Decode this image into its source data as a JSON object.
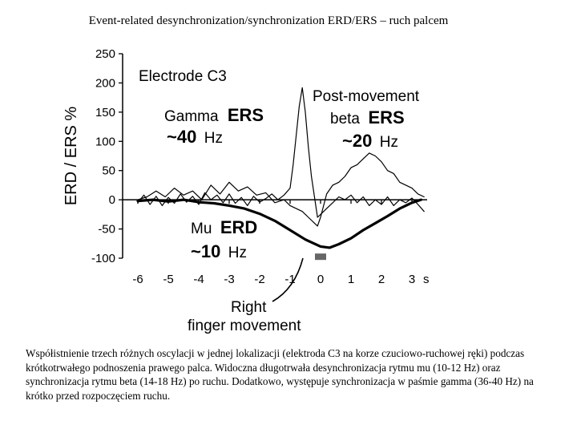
{
  "slide": {
    "title": "Event-related desynchronization/synchronization ERD/ERS – ruch palcem",
    "caption": "Współistnienie trzech różnych oscylacji w jednej lokalizacji (elektroda C3 na korze czuciowo-ruchowej ręki) podczas krótkotrwałego podnoszenia prawego palca. Widoczna długotrwała desynchronizacja rytmu mu (10-12 Hz) oraz synchronizacja rytmu beta (14-18 Hz) po ruchu. Dodatkowo, występuje synchronizacja w paśmie gamma (36-40 Hz) na krótko przed rozpoczęciem ruchu."
  },
  "chart_data": {
    "type": "line",
    "title": "",
    "ylabel": "ERD / ERS %",
    "xlabel": "s",
    "xlim": [
      -6.5,
      3.5
    ],
    "ylim": [
      -100,
      250
    ],
    "x_ticks": [
      "-6",
      "-5",
      "-4",
      "-3",
      "-2",
      "-1",
      "0",
      "1",
      "2",
      "3"
    ],
    "y_ticks": [
      "250",
      "200",
      "150",
      "100",
      "50",
      "0",
      "-50",
      "-100"
    ],
    "grid": false,
    "series": [
      {
        "key": "gamma",
        "color": "#000000",
        "style": "thin",
        "x": [
          -6.0,
          -5.8,
          -5.6,
          -5.4,
          -5.2,
          -5.0,
          -4.8,
          -4.6,
          -4.4,
          -4.2,
          -4.0,
          -3.8,
          -3.6,
          -3.4,
          -3.2,
          -3.0,
          -2.8,
          -2.6,
          -2.4,
          -2.2,
          -2.0,
          -1.8,
          -1.6,
          -1.4,
          -1.2,
          -1.0,
          -0.9,
          -0.8,
          -0.7,
          -0.6,
          -0.5,
          -0.4,
          -0.3,
          -0.2,
          -0.1,
          0.0,
          0.2,
          0.4,
          0.6,
          0.8,
          1.0,
          1.2,
          1.4,
          1.6,
          1.8,
          2.0,
          2.2,
          2.4,
          2.6,
          2.8,
          3.0,
          3.2,
          3.4
        ],
        "y": [
          -5,
          8,
          -8,
          6,
          -10,
          4,
          -6,
          10,
          -4,
          6,
          -8,
          12,
          0,
          8,
          -5,
          10,
          -6,
          4,
          -10,
          6,
          -4,
          2,
          10,
          0,
          8,
          20,
          60,
          110,
          160,
          192,
          150,
          90,
          40,
          5,
          -30,
          -25,
          -15,
          -5,
          5,
          0,
          8,
          -5,
          5,
          -10,
          0,
          -8,
          5,
          -10,
          0,
          -5,
          3,
          -8,
          -20
        ]
      },
      {
        "key": "beta",
        "color": "#000000",
        "style": "thin",
        "x": [
          -6.0,
          -5.7,
          -5.4,
          -5.1,
          -4.8,
          -4.5,
          -4.2,
          -3.9,
          -3.6,
          -3.3,
          -3.0,
          -2.7,
          -2.4,
          -2.1,
          -1.8,
          -1.5,
          -1.2,
          -1.0,
          -0.8,
          -0.6,
          -0.4,
          -0.2,
          -0.1,
          0.0,
          0.2,
          0.4,
          0.6,
          0.8,
          1.0,
          1.2,
          1.4,
          1.6,
          1.8,
          2.0,
          2.2,
          2.4,
          2.6,
          2.8,
          3.0,
          3.2,
          3.4
        ],
        "y": [
          0,
          5,
          15,
          5,
          20,
          8,
          15,
          0,
          25,
          10,
          30,
          15,
          22,
          8,
          12,
          -5,
          0,
          -10,
          -15,
          -20,
          -30,
          -40,
          -45,
          -30,
          10,
          25,
          30,
          40,
          55,
          60,
          70,
          80,
          75,
          65,
          50,
          45,
          30,
          25,
          20,
          10,
          5
        ]
      },
      {
        "key": "mu",
        "color": "#000000",
        "style": "bold",
        "x": [
          -6.0,
          -5.5,
          -5.0,
          -4.5,
          -4.0,
          -3.5,
          -3.0,
          -2.5,
          -2.0,
          -1.5,
          -1.0,
          -0.5,
          0.0,
          0.3,
          0.6,
          1.0,
          1.4,
          1.8,
          2.2,
          2.6,
          3.0,
          3.3
        ],
        "y": [
          -2,
          0,
          -3,
          0,
          -4,
          -6,
          -10,
          -15,
          -24,
          -36,
          -52,
          -68,
          -80,
          -82,
          -76,
          -66,
          -52,
          -40,
          -28,
          -15,
          -5,
          0
        ]
      }
    ],
    "annotations": {
      "electrode": "Electrode C3",
      "gamma_line1": "Gamma",
      "gamma_ers": "ERS",
      "gamma_freq_val": "~40",
      "gamma_freq_unit": "Hz",
      "postmove_line1": "Post-movement",
      "beta_word": "beta",
      "beta_ers": "ERS",
      "beta_freq_val": "~20",
      "beta_freq_unit": "Hz",
      "mu_word": "Mu",
      "mu_erd": "ERD",
      "mu_freq_val": "~10",
      "mu_freq_unit": "Hz",
      "movement_line1": "Right",
      "movement_line2": "finger movement"
    }
  }
}
